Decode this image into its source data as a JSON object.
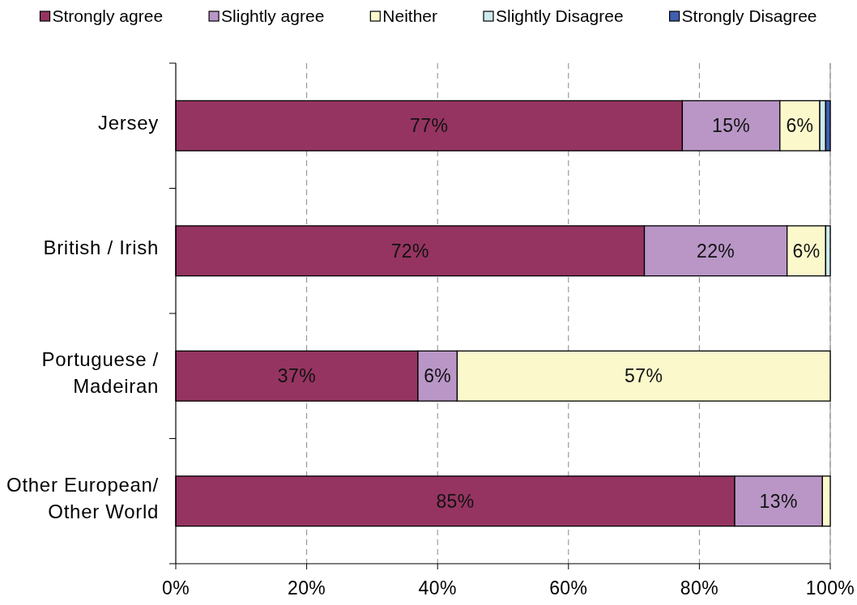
{
  "chart_data": {
    "type": "bar",
    "orientation": "horizontal",
    "stacked": true,
    "categories": [
      "Jersey",
      "British / Irish",
      "Portuguese / Madeiran",
      "Other European/ Other World"
    ],
    "series": [
      {
        "name": "Strongly agree",
        "color": "#953461",
        "values": [
          77.4,
          71.6,
          37,
          85.4
        ],
        "value_labels": [
          "77%",
          "72%",
          "37%",
          "85%"
        ]
      },
      {
        "name": "Slightly agree",
        "color": "#b996c6",
        "values": [
          14.9,
          21.8,
          6,
          13.4
        ],
        "value_labels": [
          "15%",
          "22%",
          "6%",
          "13%"
        ]
      },
      {
        "name": "Neither",
        "color": "#fbf8cc",
        "values": [
          6.1,
          5.9,
          57,
          1.2
        ],
        "value_labels": [
          "6%",
          "6%",
          "57%",
          null
        ]
      },
      {
        "name": "Slightly Disagree",
        "color": "#cdeaed",
        "values": [
          0.9,
          0.7,
          null,
          null
        ]
      },
      {
        "name": "Strongly Disagree",
        "color": "#3f5fae",
        "values": [
          0.7,
          null,
          null,
          null
        ]
      }
    ],
    "xlim": [
      0,
      100
    ],
    "xticks": [
      {
        "value": 0,
        "label": "0%"
      },
      {
        "value": 20,
        "label": "20%"
      },
      {
        "value": 40,
        "label": "40%"
      },
      {
        "value": 60,
        "label": "60%"
      },
      {
        "value": 80,
        "label": "80%"
      },
      {
        "value": 100,
        "label": "100%"
      }
    ],
    "grid": "x",
    "legend": "top"
  }
}
